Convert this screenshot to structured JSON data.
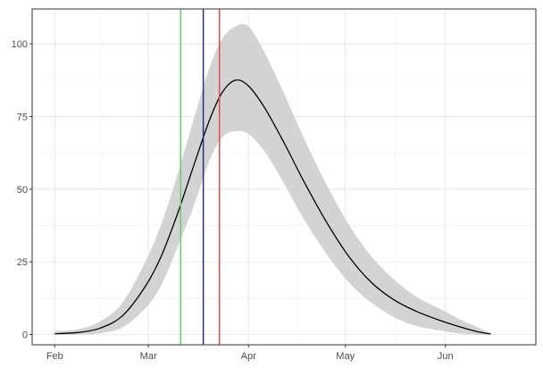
{
  "chart_data": {
    "type": "line",
    "title": "",
    "xlabel": "",
    "ylabel": "",
    "x_ticks": [
      {
        "date": "2020-02-01",
        "label": "Feb"
      },
      {
        "date": "2020-03-01",
        "label": "Mar"
      },
      {
        "date": "2020-04-01",
        "label": "Apr"
      },
      {
        "date": "2020-05-01",
        "label": "May"
      },
      {
        "date": "2020-06-01",
        "label": "Jun"
      }
    ],
    "y_ticks": [
      {
        "value": 0,
        "label": "0"
      },
      {
        "value": 25,
        "label": "25"
      },
      {
        "value": 50,
        "label": "50"
      },
      {
        "value": 75,
        "label": "75"
      },
      {
        "value": 100,
        "label": "100"
      }
    ],
    "xlim": [
      "2020-01-25",
      "2020-06-29"
    ],
    "ylim": [
      -3.5,
      112
    ],
    "grid": true,
    "legend": "none",
    "series": [
      {
        "type": "line",
        "color": "#000000",
        "points": [
          {
            "x": "2020-02-01",
            "y": 0.3
          },
          {
            "x": "2020-02-08",
            "y": 0.7
          },
          {
            "x": "2020-02-15",
            "y": 2.2
          },
          {
            "x": "2020-02-22",
            "y": 6.5
          },
          {
            "x": "2020-02-29",
            "y": 16.5
          },
          {
            "x": "2020-03-05",
            "y": 27.0
          },
          {
            "x": "2020-03-10",
            "y": 41.5
          },
          {
            "x": "2020-03-15",
            "y": 58.0
          },
          {
            "x": "2020-03-20",
            "y": 74.0
          },
          {
            "x": "2020-03-24",
            "y": 83.5
          },
          {
            "x": "2020-03-28",
            "y": 87.5
          },
          {
            "x": "2020-04-01",
            "y": 85.5
          },
          {
            "x": "2020-04-06",
            "y": 78.0
          },
          {
            "x": "2020-04-12",
            "y": 66.0
          },
          {
            "x": "2020-04-18",
            "y": 53.0
          },
          {
            "x": "2020-04-25",
            "y": 39.0
          },
          {
            "x": "2020-05-02",
            "y": 27.0
          },
          {
            "x": "2020-05-09",
            "y": 18.0
          },
          {
            "x": "2020-05-16",
            "y": 12.0
          },
          {
            "x": "2020-05-23",
            "y": 8.0
          },
          {
            "x": "2020-05-30",
            "y": 5.0
          },
          {
            "x": "2020-06-06",
            "y": 2.5
          },
          {
            "x": "2020-06-11",
            "y": 1.0
          },
          {
            "x": "2020-06-15",
            "y": 0.2
          }
        ]
      },
      {
        "type": "ribbon",
        "color": "#d3d3d3",
        "points": [
          {
            "x": "2020-02-01",
            "lo": 0.0,
            "hi": 1.2
          },
          {
            "x": "2020-02-08",
            "lo": 0.0,
            "hi": 1.8
          },
          {
            "x": "2020-02-15",
            "lo": 0.5,
            "hi": 4.5
          },
          {
            "x": "2020-02-22",
            "lo": 2.5,
            "hi": 11.0
          },
          {
            "x": "2020-02-29",
            "lo": 9.0,
            "hi": 25.0
          },
          {
            "x": "2020-03-05",
            "lo": 17.0,
            "hi": 38.0
          },
          {
            "x": "2020-03-10",
            "lo": 30.0,
            "hi": 55.0
          },
          {
            "x": "2020-03-15",
            "lo": 44.0,
            "hi": 74.0
          },
          {
            "x": "2020-03-20",
            "lo": 60.0,
            "hi": 92.0
          },
          {
            "x": "2020-03-24",
            "lo": 68.0,
            "hi": 102.0
          },
          {
            "x": "2020-03-28",
            "lo": 70.0,
            "hi": 106.0
          },
          {
            "x": "2020-04-01",
            "lo": 69.0,
            "hi": 106.0
          },
          {
            "x": "2020-04-06",
            "lo": 63.0,
            "hi": 97.0
          },
          {
            "x": "2020-04-12",
            "lo": 52.0,
            "hi": 83.0
          },
          {
            "x": "2020-04-18",
            "lo": 40.0,
            "hi": 68.0
          },
          {
            "x": "2020-04-25",
            "lo": 28.0,
            "hi": 52.0
          },
          {
            "x": "2020-05-02",
            "lo": 18.0,
            "hi": 38.0
          },
          {
            "x": "2020-05-09",
            "lo": 11.0,
            "hi": 27.0
          },
          {
            "x": "2020-05-16",
            "lo": 6.0,
            "hi": 19.0
          },
          {
            "x": "2020-05-23",
            "lo": 3.0,
            "hi": 13.0
          },
          {
            "x": "2020-05-30",
            "lo": 1.5,
            "hi": 9.0
          },
          {
            "x": "2020-06-06",
            "lo": 0.3,
            "hi": 5.0
          },
          {
            "x": "2020-06-11",
            "lo": 0.0,
            "hi": 2.5
          },
          {
            "x": "2020-06-15",
            "lo": 0.0,
            "hi": 0.5
          }
        ]
      }
    ],
    "vlines": [
      {
        "x": "2020-03-11",
        "color": "#66cc66"
      },
      {
        "x": "2020-03-18",
        "color": "#2e2e80"
      },
      {
        "x": "2020-03-23",
        "color": "#e8474b"
      }
    ]
  }
}
